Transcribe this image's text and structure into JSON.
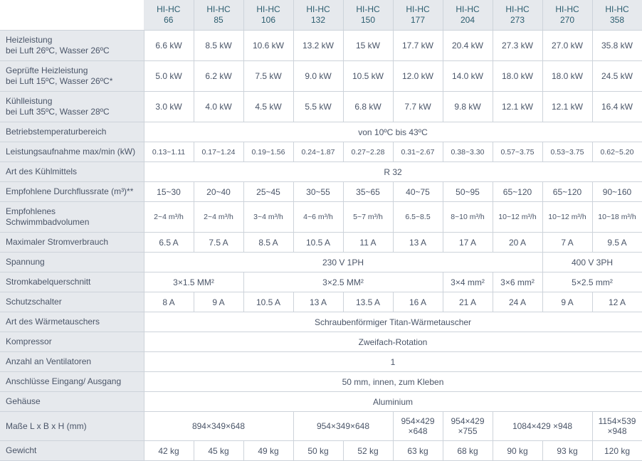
{
  "models": [
    "HI-HC 66",
    "HI-HC 85",
    "HI-HC 106",
    "HI-HC 132",
    "HI-HC 150",
    "HI-HC 177",
    "HI-HC 204",
    "HI-HC 273",
    "HI-HC 270",
    "HI-HC 358"
  ],
  "rows": [
    {
      "label": "Heizleistung\nbei Luft 26ºC, Wasser 26ºC",
      "cells": [
        "6.6 kW",
        "8.5 kW",
        "10.6 kW",
        "13.2 kW",
        "15 kW",
        "17.7 kW",
        "20.4 kW",
        "27.3 kW",
        "27.0 kW",
        "35.8 kW"
      ]
    },
    {
      "label": "Geprüfte Heizleistung\nbei Luft 15ºC, Wasser 26ºC*",
      "cells": [
        "5.0 kW",
        "6.2 kW",
        "7.5 kW",
        "9.0 kW",
        "10.5 kW",
        "12.0 kW",
        "14.0 kW",
        "18.0 kW",
        "18.0 kW",
        "24.5 kW"
      ]
    },
    {
      "label": "Kühlleistung\nbei Luft 35ºC, Wasser 28ºC",
      "cells": [
        "3.0 kW",
        "4.0 kW",
        "4.5 kW",
        "5.5 kW",
        "6.8 kW",
        "7.7 kW",
        "9.8 kW",
        "12.1 kW",
        "12.1 kW",
        "16.4 kW"
      ]
    },
    {
      "label": "Betriebstemperaturbereich",
      "cells": [
        {
          "text": "von 10ºC bis 43ºC",
          "span": 10
        }
      ]
    },
    {
      "label": "Leistungsaufnahme max/min (kW)",
      "small": true,
      "cells": [
        "0.13~1.11",
        "0.17~1.24",
        "0.19~1.56",
        "0.24~1.87",
        "0.27~2.28",
        "0.31~2.67",
        "0.38~3.30",
        "0.57~3.75",
        "0.53~3.75",
        "0.62~5.20"
      ]
    },
    {
      "label": "Art des Kühlmittels",
      "cells": [
        {
          "text": "R 32",
          "span": 10
        }
      ]
    },
    {
      "label": "Empfohlene Durchflussrate (m³)**",
      "cells": [
        "15~30",
        "20~40",
        "25~45",
        "30~55",
        "35~65",
        "40~75",
        "50~95",
        "65~120",
        "65~120",
        "90~160"
      ]
    },
    {
      "label": "Empfohlenes Schwimmbadvolumen",
      "small": true,
      "cells": [
        "2~4 m³/h",
        "2~4 m³/h",
        "3~4 m³/h",
        "4~6 m³/h",
        "5~7 m³/h",
        "6.5~8.5",
        "8~10 m³/h",
        "10~12 m³/h",
        "10~12 m³/h",
        "10~18 m³/h"
      ]
    },
    {
      "label": "Maximaler Stromverbrauch",
      "cells": [
        "6.5 A",
        "7.5 A",
        "8.5 A",
        "10.5 A",
        "11 A",
        "13 A",
        "17 A",
        "20 A",
        "7 A",
        "9.5 A"
      ]
    },
    {
      "label": "Spannung",
      "cells": [
        {
          "text": "230 V 1PH",
          "span": 8
        },
        {
          "text": "400 V 3PH",
          "span": 2
        }
      ]
    },
    {
      "label": "Stromkabelquerschnitt",
      "cells": [
        {
          "text": "3×1.5 MM²",
          "span": 2
        },
        {
          "text": "3×2.5 MM²",
          "span": 4
        },
        {
          "text": "3×4 mm²",
          "span": 1
        },
        {
          "text": "3×6 mm²",
          "span": 1
        },
        {
          "text": "5×2.5 mm²",
          "span": 2
        }
      ]
    },
    {
      "label": "Schutzschalter",
      "cells": [
        "8 A",
        "9 A",
        "10.5 A",
        "13 A",
        "13.5 A",
        "16 A",
        "21 A",
        "24 A",
        "9 A",
        "12 A"
      ]
    },
    {
      "label": "Art des Wärmetauschers",
      "cells": [
        {
          "text": "Schraubenförmiger Titan-Wärmetauscher",
          "span": 10
        }
      ]
    },
    {
      "label": "Kompressor",
      "cells": [
        {
          "text": "Zweifach-Rotation",
          "span": 10
        }
      ]
    },
    {
      "label": "Anzahl an Ventilatoren",
      "cells": [
        {
          "text": "1",
          "span": 10
        }
      ]
    },
    {
      "label": "Anschlüsse Eingang/ Ausgang",
      "cells": [
        {
          "text": "50 mm, innen, zum Kleben",
          "span": 10
        }
      ]
    },
    {
      "label": "Gehäuse",
      "cells": [
        {
          "text": "Aluminium",
          "span": 10
        }
      ]
    },
    {
      "label": "Maße L x B x H (mm)",
      "cells": [
        {
          "text": "894×349×648",
          "span": 3
        },
        {
          "text": "954×349×648",
          "span": 2
        },
        {
          "text": "954×429 ×648",
          "span": 1
        },
        {
          "text": "954×429 ×755",
          "span": 1
        },
        {
          "text": "1084×429 ×948",
          "span": 2
        },
        {
          "text": "1154×539 ×948",
          "span": 1
        }
      ]
    },
    {
      "label": "Gewicht",
      "cells": [
        "42 kg",
        "45 kg",
        "49 kg",
        "50 kg",
        "52 kg",
        "63 kg",
        "68 kg",
        "90 kg",
        "93 kg",
        "120 kg"
      ]
    }
  ],
  "colors": {
    "header_bg": "#e6e9ed",
    "border": "#cdd3da",
    "text": "#4a5568",
    "header_text": "#2c5d6f"
  }
}
